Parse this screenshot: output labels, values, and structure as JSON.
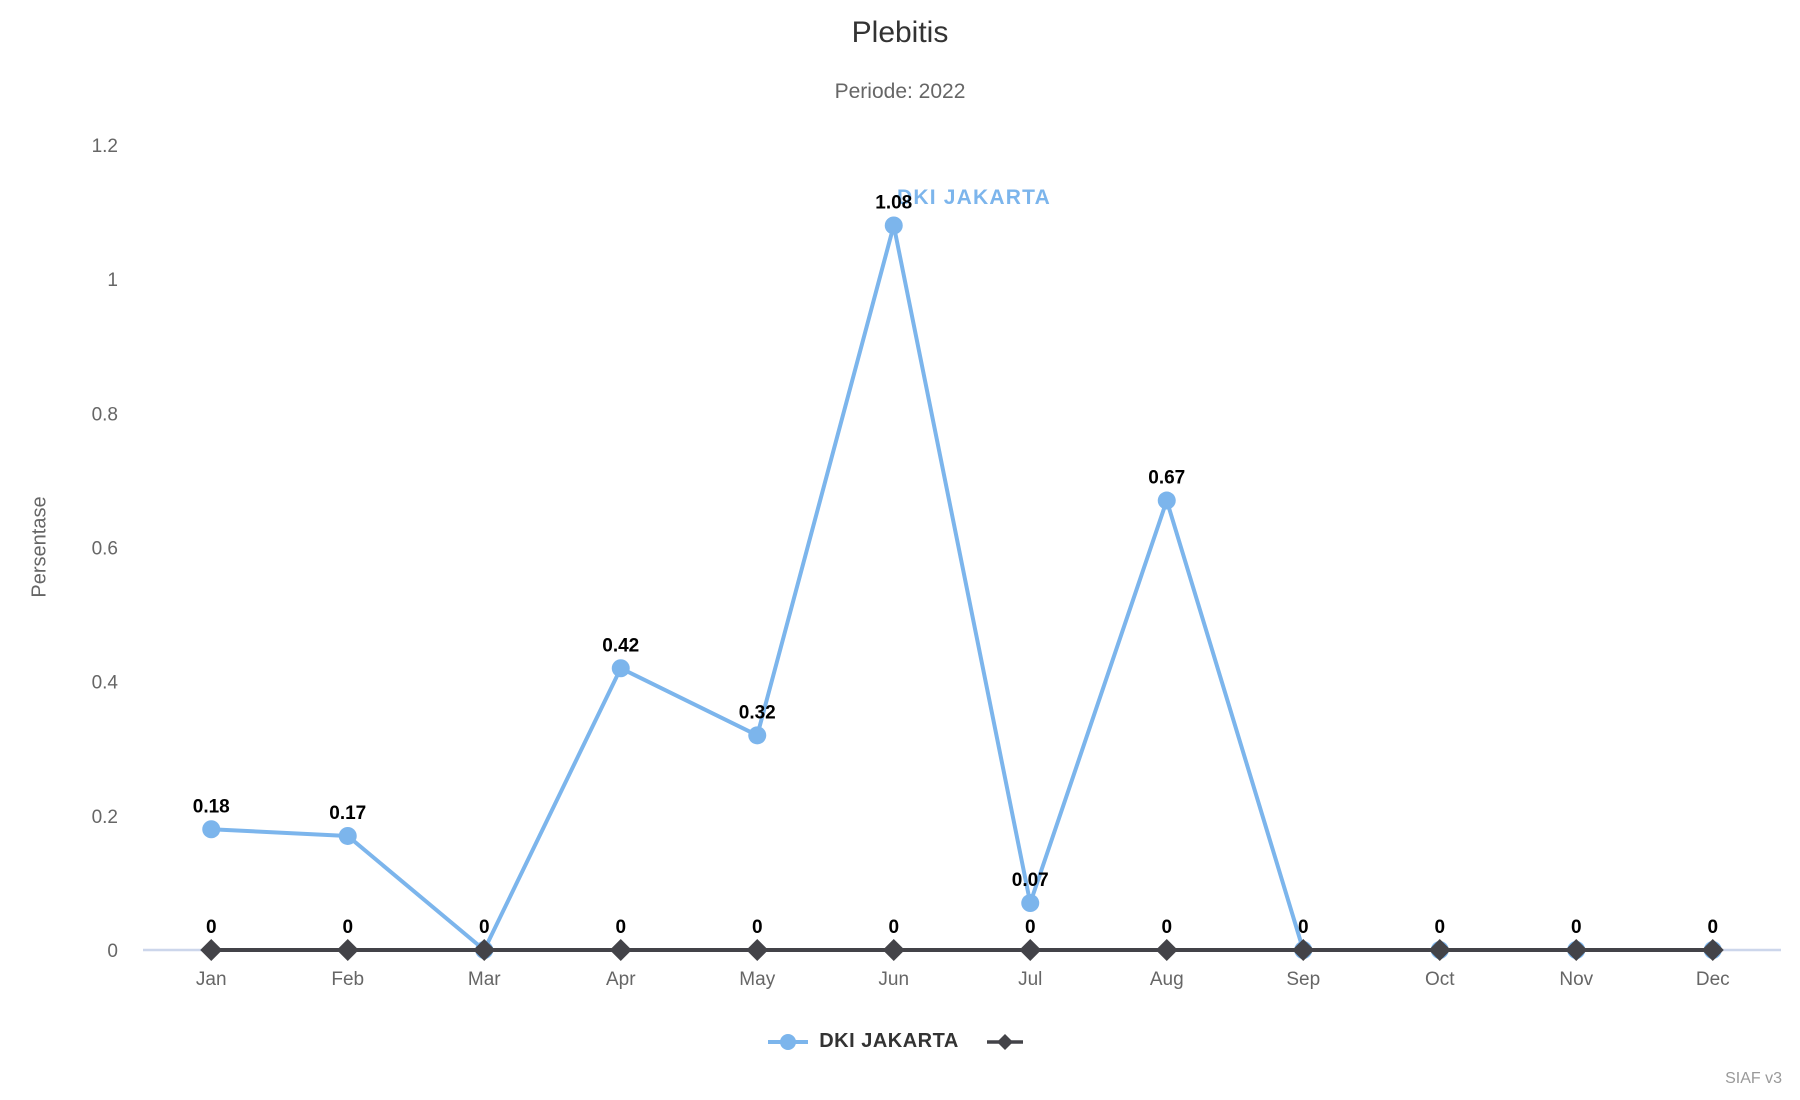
{
  "chart_data": {
    "type": "line",
    "title": "Plebitis",
    "subtitle": "Periode: 2022",
    "ylabel": "Persentase",
    "xlabel": "",
    "categories": [
      "Jan",
      "Feb",
      "Mar",
      "Apr",
      "May",
      "Jun",
      "Jul",
      "Aug",
      "Sep",
      "Oct",
      "Nov",
      "Dec"
    ],
    "yticks": [
      "0",
      "0.2",
      "0.4",
      "0.6",
      "0.8",
      "1",
      "1.2"
    ],
    "ytick_values": [
      0,
      0.2,
      0.4,
      0.6,
      0.8,
      1,
      1.2
    ],
    "ylim": [
      0,
      1.2
    ],
    "grid": false,
    "legend_position": "bottom-center",
    "axis_line_color": "#ccd6eb",
    "data_label_color": "#000000",
    "tick_label_color": "#666666",
    "series": [
      {
        "name": "DKI JAKARTA",
        "color": "#7cb5ec",
        "marker": "circle",
        "values": [
          0.18,
          0.17,
          0,
          0.42,
          0.32,
          1.08,
          0.07,
          0.67,
          0,
          0,
          0,
          0
        ],
        "data_labels": [
          "0.18",
          "0.17",
          "0",
          "0.42",
          "0.32",
          "1.08",
          "0.07",
          "0.67",
          "0",
          "0",
          "0",
          "0"
        ]
      },
      {
        "name": "",
        "color": "#434348",
        "marker": "diamond",
        "values": [
          0,
          0,
          0,
          0,
          0,
          0,
          0,
          0,
          0,
          0,
          0,
          0
        ],
        "data_labels": [
          "0",
          "0",
          "0",
          "0",
          "0",
          "0",
          "0",
          "0",
          "0",
          "0",
          "0",
          "0"
        ]
      }
    ],
    "series_label": "DKI JAKARTA",
    "watermark": "SIAF v3"
  }
}
